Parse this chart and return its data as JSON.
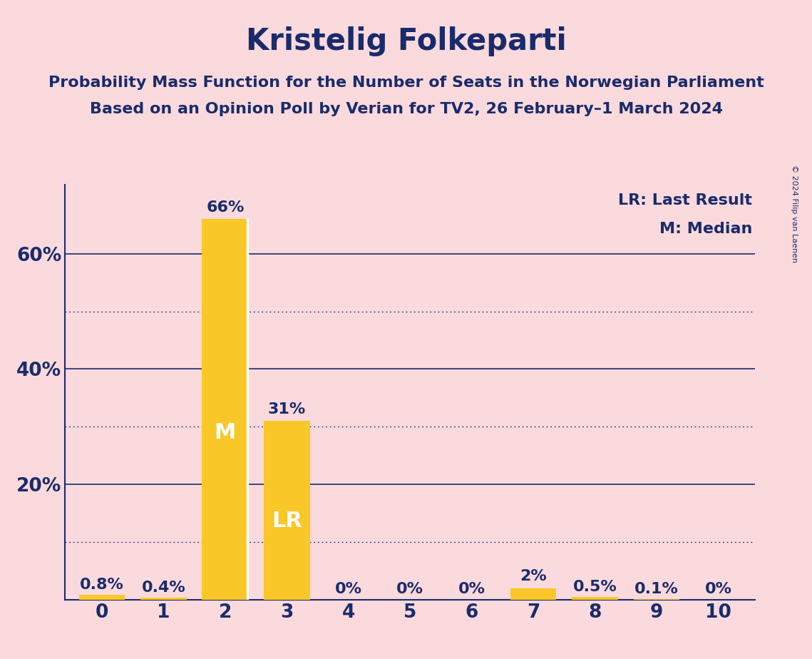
{
  "title": "Kristelig Folkeparti",
  "subtitle1": "Probability Mass Function for the Number of Seats in the Norwegian Parliament",
  "subtitle2": "Based on an Opinion Poll by Verian for TV2, 26 February–1 March 2024",
  "copyright": "© 2024 Filip van Laenen",
  "categories": [
    0,
    1,
    2,
    3,
    4,
    5,
    6,
    7,
    8,
    9,
    10
  ],
  "values": [
    0.8,
    0.4,
    66,
    31,
    0,
    0,
    0,
    2,
    0.5,
    0.1,
    0
  ],
  "bar_labels": [
    "0.8%",
    "0.4%",
    "66%",
    "31%",
    "0%",
    "0%",
    "0%",
    "2%",
    "0.5%",
    "0.1%",
    "0%"
  ],
  "bar_color": "#F9C727",
  "background_color": "#FADADD",
  "text_color": "#1A2B6B",
  "median_bar": 2,
  "lr_bar": 3,
  "median_label": "M",
  "lr_label": "LR",
  "legend_lr": "LR: Last Result",
  "legend_m": "M: Median",
  "ylim": [
    0,
    72
  ],
  "solid_gridlines": [
    0,
    20,
    40,
    60
  ],
  "dotted_gridlines": [
    10,
    30,
    50
  ],
  "title_fontsize": 30,
  "subtitle_fontsize": 16,
  "axis_tick_fontsize": 19,
  "bar_label_fontsize": 16,
  "legend_fontsize": 16,
  "inbar_label_fontsize": 22,
  "copyright_fontsize": 8,
  "bar_width": 0.75
}
